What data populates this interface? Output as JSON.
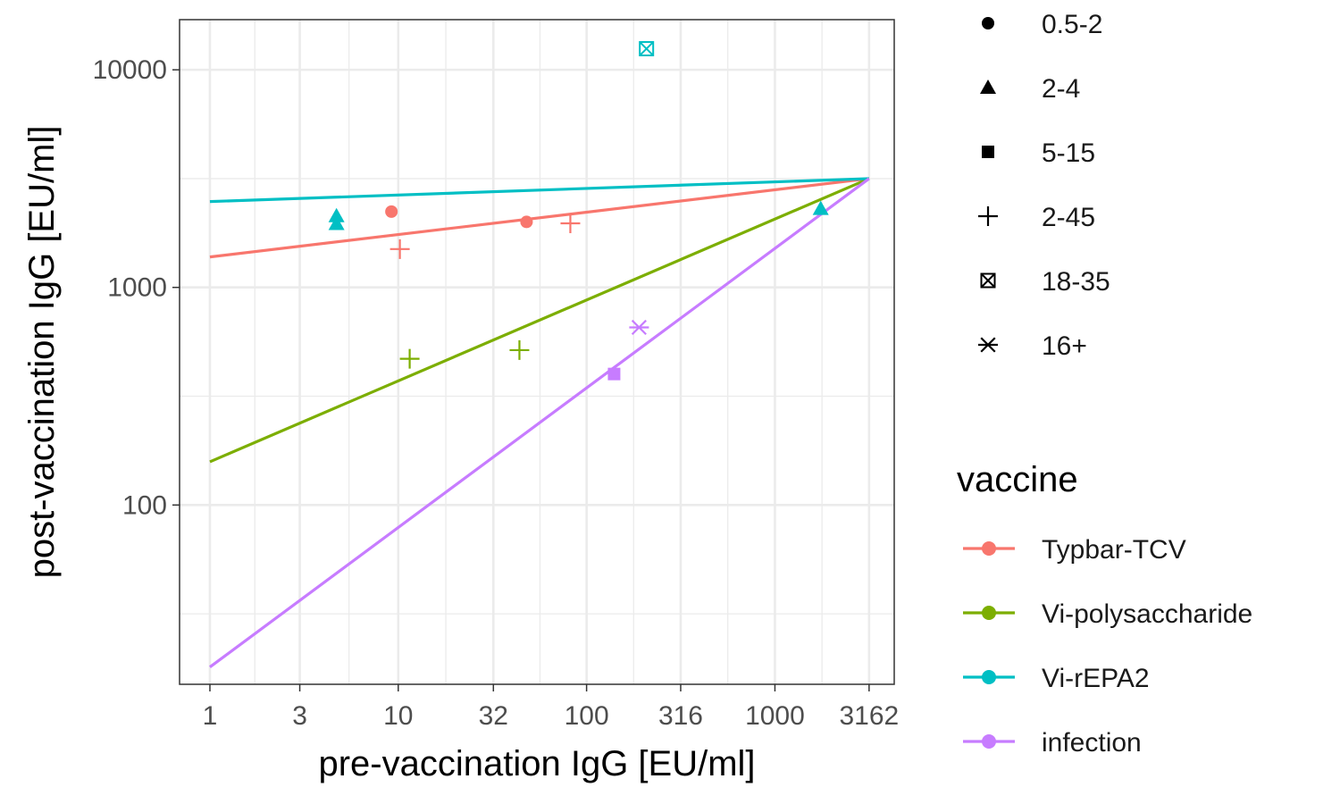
{
  "chart_data": {
    "type": "scatter",
    "xlabel": "pre-vaccination IgG [EU/ml]",
    "ylabel": "post-vaccination IgG [EU/ml]",
    "x_scale": "log10",
    "y_scale": "log10",
    "x_ticks": [
      1,
      3,
      10,
      32,
      100,
      316,
      1000,
      3162
    ],
    "x_tick_labels": [
      "1",
      "3",
      "10",
      "32",
      "100",
      "316",
      "1000",
      "3162"
    ],
    "y_ticks": [
      100,
      1000,
      10000
    ],
    "y_tick_labels": [
      "100",
      "1000",
      "10000"
    ],
    "xlim": [
      0.69,
      4300
    ],
    "ylim": [
      15,
      17000
    ],
    "grid": true,
    "vaccine_legend_title": "vaccine",
    "series": [
      {
        "name": "Typbar-TCV",
        "color": "#F8766D",
        "line": [
          [
            1,
            1380
          ],
          [
            3162,
            3162
          ]
        ],
        "points": [
          {
            "x": 9.2,
            "y": 2230,
            "shape": "circle"
          },
          {
            "x": 48,
            "y": 2000,
            "shape": "circle"
          },
          {
            "x": 10.2,
            "y": 1500,
            "shape": "plus"
          },
          {
            "x": 82,
            "y": 1970,
            "shape": "plus"
          }
        ]
      },
      {
        "name": "Vi-polysaccharide",
        "color": "#7CAE00",
        "line": [
          [
            1,
            158
          ],
          [
            3162,
            3162
          ]
        ],
        "points": [
          {
            "x": 11.5,
            "y": 470,
            "shape": "plus"
          },
          {
            "x": 44,
            "y": 515,
            "shape": "plus"
          }
        ]
      },
      {
        "name": "Vi-rEPA2",
        "color": "#00BFC4",
        "line": [
          [
            1,
            2480
          ],
          [
            3162,
            3162
          ]
        ],
        "points": [
          {
            "x": 4.7,
            "y": 2130,
            "shape": "triangle"
          },
          {
            "x": 4.7,
            "y": 1960,
            "shape": "triangle"
          },
          {
            "x": 1750,
            "y": 2300,
            "shape": "triangle"
          },
          {
            "x": 208,
            "y": 12500,
            "shape": "boxtimes"
          }
        ]
      },
      {
        "name": "infection",
        "color": "#C77CFF",
        "line": [
          [
            1,
            18
          ],
          [
            3162,
            3162
          ]
        ],
        "points": [
          {
            "x": 140,
            "y": 400,
            "shape": "square"
          },
          {
            "x": 190,
            "y": 655,
            "shape": "asterisk"
          }
        ]
      }
    ],
    "shape_legend": [
      {
        "label": "0.5-2",
        "shape": "circle"
      },
      {
        "label": "2-4",
        "shape": "triangle"
      },
      {
        "label": "5-15",
        "shape": "square"
      },
      {
        "label": "2-45",
        "shape": "plus"
      },
      {
        "label": "18-35",
        "shape": "boxtimes"
      },
      {
        "label": "16+",
        "shape": "asterisk"
      }
    ]
  }
}
